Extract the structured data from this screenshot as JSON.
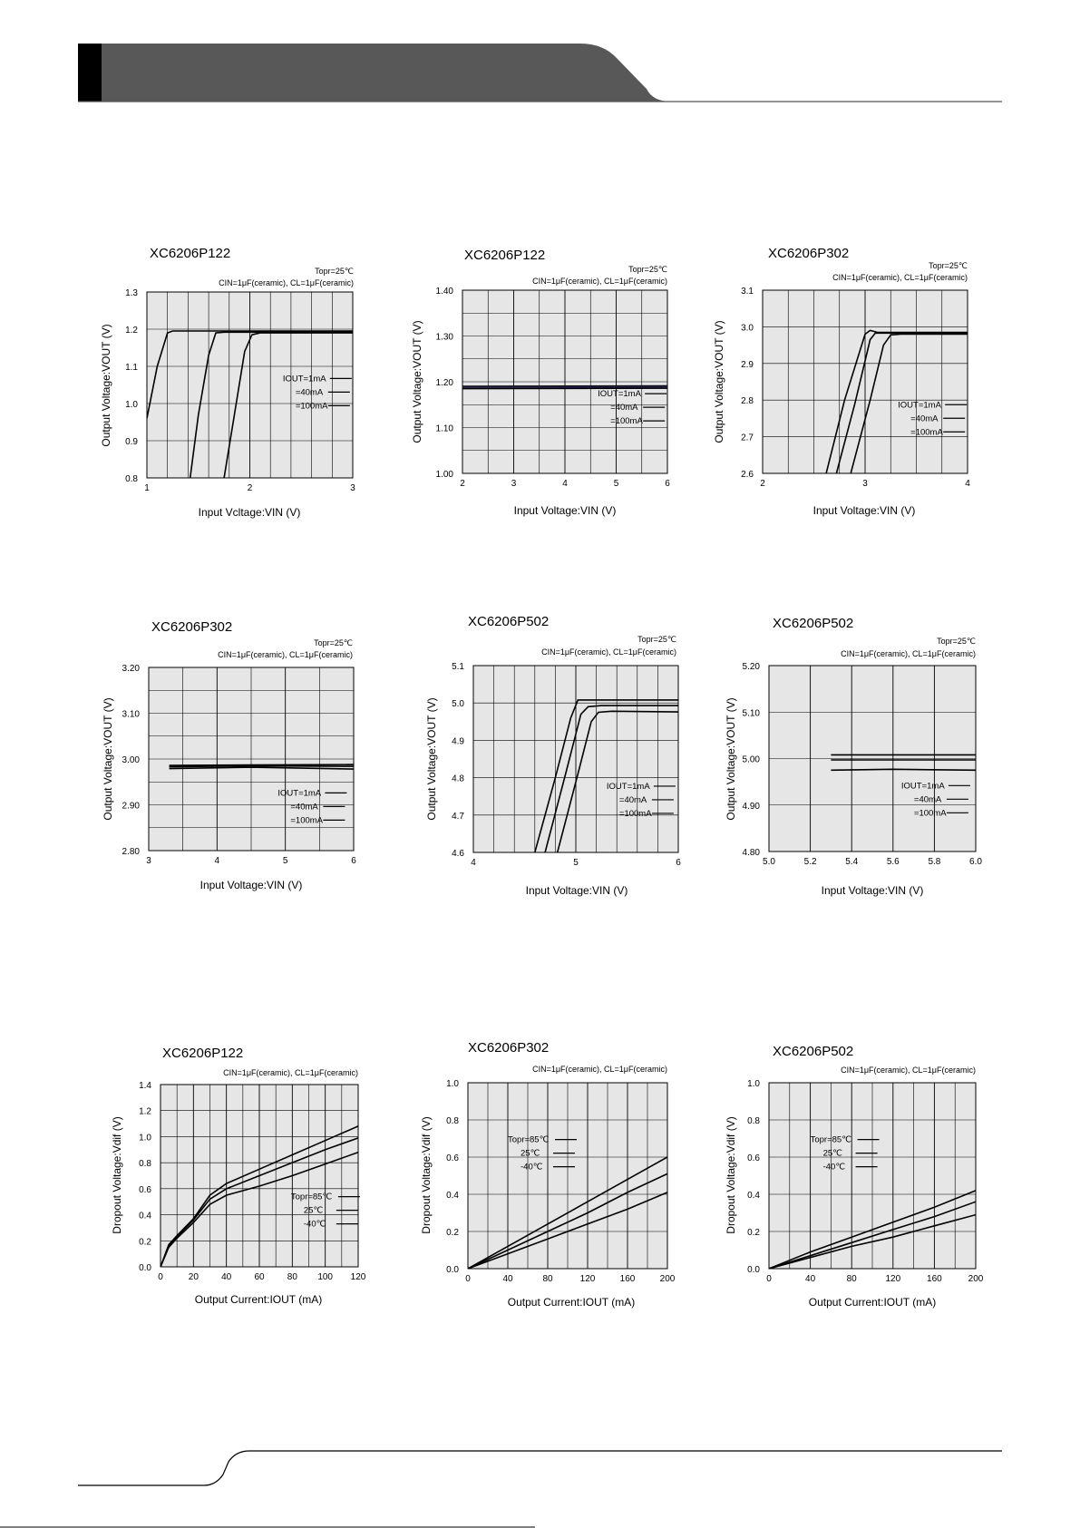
{
  "charts": [
    {
      "id": "c1",
      "title": "XC6206P122",
      "topr": "Topr=25℃",
      "conditions": "CIN=1μF(ceramic), CL=1μF(ceramic)",
      "xlabel": "Input Vcltage:VIN (V)",
      "ylabel": "Output Voltage:VOUT (V)",
      "xlim": [
        1,
        3
      ],
      "ylim": [
        0.8,
        1.3
      ],
      "xticks": [
        "1",
        "2",
        "3"
      ],
      "yticks": [
        "0.8",
        "0.9",
        "1.0",
        "1.1",
        "1.2",
        "1.3"
      ],
      "legend": [
        "IOUT=1mA",
        "=40mA",
        "=100mA"
      ]
    },
    {
      "id": "c2",
      "title": "XC6206P122",
      "topr": "Topr=25℃",
      "conditions": "CIN=1μF(ceramic), CL=1μF(ceramic)",
      "xlabel": "Input Voltage:VIN (V)",
      "ylabel": "Output Voltage:VOUT (V)",
      "xlim": [
        2,
        6
      ],
      "ylim": [
        1.0,
        1.4
      ],
      "xticks": [
        "2",
        "3",
        "4",
        "5",
        "6"
      ],
      "yticks": [
        "1.00",
        "1.10",
        "1.20",
        "1.30",
        "1.40"
      ],
      "legend": [
        "IOUT=1mA",
        "=40mA",
        "=100mA"
      ]
    },
    {
      "id": "c3",
      "title": "XC6206P302",
      "topr": "Topr=25℃",
      "conditions": "CIN=1μF(ceramic), CL=1μF(ceramic)",
      "xlabel": "Input Voltage:VIN (V)",
      "ylabel": "Output Voltage:VOUT (V)",
      "xlim": [
        2,
        4
      ],
      "ylim": [
        2.6,
        3.1
      ],
      "xticks": [
        "2",
        "3",
        "4"
      ],
      "yticks": [
        "2.6",
        "2.7",
        "2.8",
        "2.9",
        "3.0",
        "3.1"
      ],
      "legend": [
        "IOUT=1mA",
        "=40mA",
        "=100mA"
      ]
    },
    {
      "id": "c4",
      "title": "XC6206P302",
      "topr": "Topr=25℃",
      "conditions": "CIN=1μF(ceramic), CL=1μF(ceramic)",
      "xlabel": "Input Voltage:VIN (V)",
      "ylabel": "Output Voltage:VOUT (V)",
      "xlim": [
        3,
        6
      ],
      "ylim": [
        2.8,
        3.2
      ],
      "xticks": [
        "3",
        "4",
        "5",
        "6"
      ],
      "yticks": [
        "2.80",
        "2.90",
        "3.00",
        "3.10",
        "3.20"
      ],
      "legend": [
        "IOUT=1mA",
        "=40mA",
        "=100mA"
      ]
    },
    {
      "id": "c5",
      "title": "XC6206P502",
      "topr": "Topr=25℃",
      "conditions": "CIN=1μF(ceramic), CL=1μF(ceramic)",
      "xlabel": "Input Voltage:VIN (V)",
      "ylabel": "Output Voltage:VOUT (V)",
      "xlim": [
        4,
        6
      ],
      "ylim": [
        4.6,
        5.1
      ],
      "xticks": [
        "4",
        "5",
        "6"
      ],
      "yticks": [
        "4.6",
        "4.7",
        "4.8",
        "4.9",
        "5.0",
        "5.1"
      ],
      "legend": [
        "IOUT=1mA",
        "=40mA",
        "=100mA"
      ]
    },
    {
      "id": "c6",
      "title": "XC6206P502",
      "topr": "Topr=25℃",
      "conditions": "CIN=1μF(ceramic), CL=1μF(ceramic)",
      "xlabel": "Input Voltage:VIN (V)",
      "ylabel": "Output Voltage:VOUT (V)",
      "xlim": [
        5.0,
        6.0
      ],
      "ylim": [
        4.8,
        5.2
      ],
      "xticks": [
        "5.0",
        "5.2",
        "5.4",
        "5.6",
        "5.8",
        "6.0"
      ],
      "yticks": [
        "4.80",
        "4.90",
        "5.00",
        "5.10",
        "5.20"
      ],
      "legend": [
        "IOUT=1mA",
        "=40mA",
        "=100mA"
      ]
    },
    {
      "id": "c7",
      "title": "XC6206P122",
      "topr": "",
      "conditions": "CIN=1μF(ceramic), CL=1μF(ceramic)",
      "xlabel": "Output Current:IOUT (mA)",
      "ylabel": "Dropout Voltage:Vdif (V)",
      "xlim": [
        0,
        120
      ],
      "ylim": [
        0,
        1.4
      ],
      "xticks": [
        "0",
        "20",
        "40",
        "60",
        "80",
        "100",
        "120"
      ],
      "yticks": [
        "0.0",
        "0.2",
        "0.4",
        "0.6",
        "0.8",
        "1.0",
        "1.2",
        "1.4"
      ],
      "legend": [
        "Topr=85℃",
        "25℃",
        "-40℃"
      ]
    },
    {
      "id": "c8",
      "title": "XC6206P302",
      "topr": "",
      "conditions": "CIN=1μF(ceramic), CL=1μF(ceramic)",
      "xlabel": "Output Current:IOUT (mA)",
      "ylabel": "Dropout Voltage:Vdif (V)",
      "xlim": [
        0,
        200
      ],
      "ylim": [
        0,
        1.0
      ],
      "xticks": [
        "0",
        "40",
        "80",
        "120",
        "160",
        "200"
      ],
      "yticks": [
        "0.0",
        "0.2",
        "0.4",
        "0.6",
        "0.8",
        "1.0"
      ],
      "legend": [
        "Topr=85℃",
        "25℃",
        "-40℃"
      ]
    },
    {
      "id": "c9",
      "title": "XC6206P502",
      "topr": "",
      "conditions": "CIN=1μF(ceramic), CL=1μF(ceramic)",
      "xlabel": "Output Current:IOUT (mA)",
      "ylabel": "Dropout Voltage:Vdif (V)",
      "xlim": [
        0,
        200
      ],
      "ylim": [
        0,
        1.0
      ],
      "xticks": [
        "0",
        "40",
        "80",
        "120",
        "160",
        "200"
      ],
      "yticks": [
        "0.0",
        "0.2",
        "0.4",
        "0.6",
        "0.8",
        "1.0"
      ],
      "legend": [
        "Topr=85℃",
        "25℃",
        "-40℃"
      ]
    }
  ],
  "chart_data": [
    {
      "type": "line",
      "title": "XC6206P122",
      "xlabel": "Input Vcltage:VIN (V)",
      "ylabel": "Output Voltage:VOUT (V)",
      "xlim": [
        1,
        3
      ],
      "ylim": [
        0.8,
        1.3
      ],
      "series": [
        {
          "name": "IOUT=1mA",
          "points": [
            [
              1.0,
              0.96
            ],
            [
              1.1,
              1.1
            ],
            [
              1.2,
              1.19
            ],
            [
              1.25,
              1.195
            ],
            [
              3.0,
              1.195
            ]
          ]
        },
        {
          "name": "=40mA",
          "points": [
            [
              1.42,
              0.8
            ],
            [
              1.5,
              0.97
            ],
            [
              1.6,
              1.13
            ],
            [
              1.67,
              1.19
            ],
            [
              1.75,
              1.192
            ],
            [
              3.0,
              1.192
            ]
          ]
        },
        {
          "name": "=100mA",
          "points": [
            [
              1.75,
              0.8
            ],
            [
              1.85,
              0.97
            ],
            [
              1.95,
              1.14
            ],
            [
              2.02,
              1.185
            ],
            [
              2.1,
              1.19
            ],
            [
              3.0,
              1.19
            ]
          ]
        }
      ]
    },
    {
      "type": "line",
      "title": "XC6206P122",
      "xlabel": "Input Voltage:VIN (V)",
      "ylabel": "Output Voltage:VOUT (V)",
      "xlim": [
        2,
        6
      ],
      "ylim": [
        1.0,
        1.4
      ],
      "series": [
        {
          "name": "IOUT=1mA",
          "points": [
            [
              2,
              1.19
            ],
            [
              6,
              1.191
            ]
          ]
        },
        {
          "name": "=40mA",
          "points": [
            [
              2,
              1.188
            ],
            [
              6,
              1.189
            ]
          ]
        },
        {
          "name": "=100mA",
          "points": [
            [
              2,
              1.185
            ],
            [
              6,
              1.186
            ]
          ]
        }
      ]
    },
    {
      "type": "line",
      "title": "XC6206P302",
      "xlabel": "Input Voltage:VIN (V)",
      "ylabel": "Output Voltage:VOUT (V)",
      "xlim": [
        2,
        4
      ],
      "ylim": [
        2.6,
        3.1
      ],
      "series": [
        {
          "name": "IOUT=1mA",
          "points": [
            [
              2.62,
              2.6
            ],
            [
              2.8,
              2.8
            ],
            [
              3.0,
              2.98
            ],
            [
              3.05,
              2.99
            ],
            [
              3.12,
              2.985
            ],
            [
              4.0,
              2.985
            ]
          ]
        },
        {
          "name": "=40mA",
          "points": [
            [
              2.72,
              2.6
            ],
            [
              2.9,
              2.79
            ],
            [
              3.05,
              2.965
            ],
            [
              3.1,
              2.983
            ],
            [
              3.2,
              2.983
            ],
            [
              4.0,
              2.983
            ]
          ]
        },
        {
          "name": "=100mA",
          "points": [
            [
              2.86,
              2.6
            ],
            [
              3.05,
              2.8
            ],
            [
              3.18,
              2.95
            ],
            [
              3.25,
              2.978
            ],
            [
              3.35,
              2.98
            ],
            [
              4.0,
              2.98
            ]
          ]
        }
      ]
    },
    {
      "type": "line",
      "title": "XC6206P302",
      "xlabel": "Input Voltage:VIN (V)",
      "ylabel": "Output Voltage:VOUT (V)",
      "xlim": [
        3,
        6
      ],
      "ylim": [
        2.8,
        3.2
      ],
      "series": [
        {
          "name": "IOUT=1mA",
          "points": [
            [
              3.3,
              2.986
            ],
            [
              4.5,
              2.987
            ],
            [
              6.0,
              2.988
            ]
          ]
        },
        {
          "name": "=40mA",
          "points": [
            [
              3.3,
              2.983
            ],
            [
              4.5,
              2.985
            ],
            [
              6.0,
              2.984
            ]
          ]
        },
        {
          "name": "=100mA",
          "points": [
            [
              3.3,
              2.979
            ],
            [
              4.5,
              2.982
            ],
            [
              6.0,
              2.978
            ]
          ]
        }
      ]
    },
    {
      "type": "line",
      "title": "XC6206P502",
      "xlabel": "Input Voltage:VIN (V)",
      "ylabel": "Output Voltage:VOUT (V)",
      "xlim": [
        4,
        6
      ],
      "ylim": [
        4.6,
        5.1
      ],
      "series": [
        {
          "name": "IOUT=1mA",
          "points": [
            [
              4.6,
              4.6
            ],
            [
              4.8,
              4.8
            ],
            [
              4.95,
              4.96
            ],
            [
              5.02,
              5.008
            ],
            [
              6.0,
              5.008
            ]
          ]
        },
        {
          "name": "=40mA",
          "points": [
            [
              4.7,
              4.6
            ],
            [
              4.9,
              4.81
            ],
            [
              5.05,
              4.97
            ],
            [
              5.12,
              4.99
            ],
            [
              5.25,
              4.993
            ],
            [
              6.0,
              4.993
            ]
          ]
        },
        {
          "name": "=100mA",
          "points": [
            [
              4.82,
              4.6
            ],
            [
              5.02,
              4.81
            ],
            [
              5.15,
              4.95
            ],
            [
              5.22,
              4.975
            ],
            [
              5.35,
              4.978
            ],
            [
              6.0,
              4.976
            ]
          ]
        }
      ]
    },
    {
      "type": "line",
      "title": "XC6206P502",
      "xlabel": "Input Voltage:VIN (V)",
      "ylabel": "Output Voltage:VOUT (V)",
      "xlim": [
        5.0,
        6.0
      ],
      "ylim": [
        4.8,
        5.2
      ],
      "series": [
        {
          "name": "IOUT=1mA",
          "points": [
            [
              5.3,
              5.008
            ],
            [
              6.0,
              5.008
            ]
          ]
        },
        {
          "name": "=40mA",
          "points": [
            [
              5.3,
              4.997
            ],
            [
              6.0,
              4.997
            ]
          ]
        },
        {
          "name": "=100mA",
          "points": [
            [
              5.3,
              4.975
            ],
            [
              5.6,
              4.977
            ],
            [
              6.0,
              4.975
            ]
          ]
        }
      ]
    },
    {
      "type": "line",
      "title": "XC6206P122",
      "xlabel": "Output Current:IOUT (mA)",
      "ylabel": "Dropout Voltage:Vdif (V)",
      "xlim": [
        0,
        120
      ],
      "ylim": [
        0,
        1.4
      ],
      "series": [
        {
          "name": "Topr=85℃",
          "points": [
            [
              0,
              0.0
            ],
            [
              5,
              0.17
            ],
            [
              10,
              0.24
            ],
            [
              20,
              0.37
            ],
            [
              30,
              0.55
            ],
            [
              40,
              0.64
            ],
            [
              60,
              0.75
            ],
            [
              80,
              0.86
            ],
            [
              100,
              0.97
            ],
            [
              120,
              1.08
            ]
          ]
        },
        {
          "name": "25℃",
          "points": [
            [
              0,
              0.0
            ],
            [
              5,
              0.16
            ],
            [
              10,
              0.23
            ],
            [
              20,
              0.36
            ],
            [
              30,
              0.52
            ],
            [
              40,
              0.6
            ],
            [
              60,
              0.7
            ],
            [
              80,
              0.8
            ],
            [
              100,
              0.9
            ],
            [
              120,
              0.99
            ]
          ]
        },
        {
          "name": "-40℃",
          "points": [
            [
              0,
              0.0
            ],
            [
              5,
              0.15
            ],
            [
              10,
              0.22
            ],
            [
              20,
              0.34
            ],
            [
              30,
              0.48
            ],
            [
              40,
              0.55
            ],
            [
              60,
              0.62
            ],
            [
              80,
              0.7
            ],
            [
              100,
              0.79
            ],
            [
              120,
              0.88
            ]
          ]
        }
      ]
    },
    {
      "type": "line",
      "title": "XC6206P302",
      "xlabel": "Output Current:IOUT (mA)",
      "ylabel": "Dropout Voltage:Vdif (V)",
      "xlim": [
        0,
        200
      ],
      "ylim": [
        0,
        1.0
      ],
      "series": [
        {
          "name": "Topr=85℃",
          "points": [
            [
              0,
              0.0
            ],
            [
              40,
              0.12
            ],
            [
              80,
              0.24
            ],
            [
              120,
              0.36
            ],
            [
              160,
              0.48
            ],
            [
              200,
              0.6
            ]
          ]
        },
        {
          "name": "25℃",
          "points": [
            [
              0,
              0.0
            ],
            [
              40,
              0.1
            ],
            [
              80,
              0.2
            ],
            [
              120,
              0.3
            ],
            [
              160,
              0.41
            ],
            [
              200,
              0.51
            ]
          ]
        },
        {
          "name": "-40℃",
          "points": [
            [
              0,
              0.0
            ],
            [
              40,
              0.08
            ],
            [
              80,
              0.16
            ],
            [
              120,
              0.24
            ],
            [
              160,
              0.32
            ],
            [
              200,
              0.41
            ]
          ]
        }
      ]
    },
    {
      "type": "line",
      "title": "XC6206P502",
      "xlabel": "Output Current:IOUT (mA)",
      "ylabel": "Dropout Voltage:Vdif (V)",
      "xlim": [
        0,
        200
      ],
      "ylim": [
        0,
        1.0
      ],
      "series": [
        {
          "name": "Topr=85℃",
          "points": [
            [
              0,
              0.0
            ],
            [
              40,
              0.09
            ],
            [
              80,
              0.17
            ],
            [
              120,
              0.25
            ],
            [
              160,
              0.33
            ],
            [
              200,
              0.42
            ]
          ]
        },
        {
          "name": "25℃",
          "points": [
            [
              0,
              0.0
            ],
            [
              40,
              0.07
            ],
            [
              80,
              0.14
            ],
            [
              120,
              0.21
            ],
            [
              160,
              0.28
            ],
            [
              200,
              0.36
            ]
          ]
        },
        {
          "name": "-40℃",
          "points": [
            [
              0,
              0.0
            ],
            [
              40,
              0.06
            ],
            [
              80,
              0.12
            ],
            [
              120,
              0.17
            ],
            [
              160,
              0.23
            ],
            [
              200,
              0.29
            ]
          ]
        }
      ]
    }
  ]
}
